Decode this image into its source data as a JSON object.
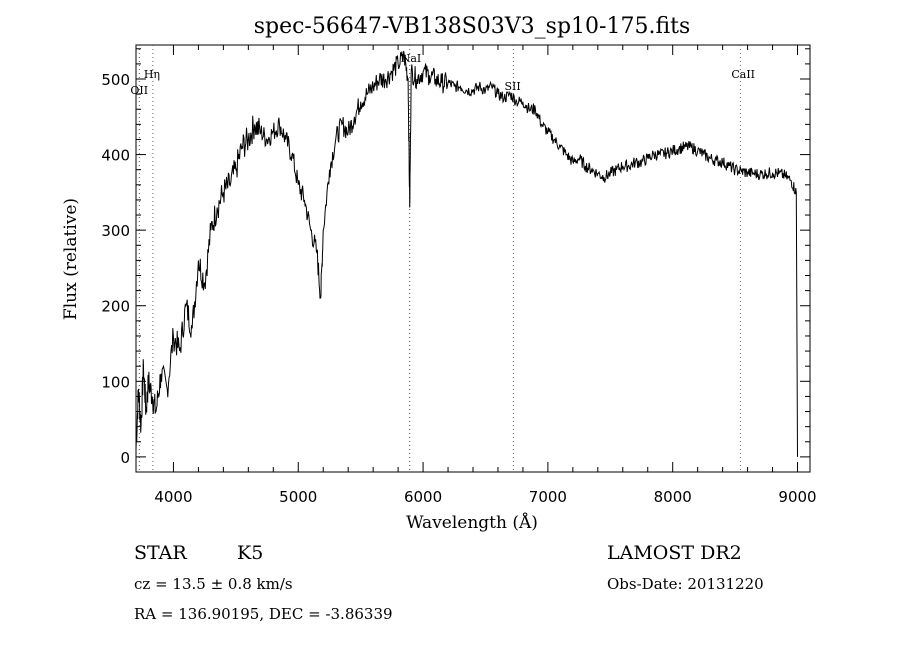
{
  "chart_data": {
    "type": "line",
    "title": "spec-56647-VB138S03V3_sp10-175.fits",
    "xlabel": "Wavelength (Å)",
    "ylabel": "Flux (relative)",
    "xlim": [
      3700,
      9100
    ],
    "ylim": [
      -20,
      545
    ],
    "x_ticks": [
      4000,
      5000,
      6000,
      7000,
      8000,
      9000
    ],
    "y_ticks": [
      0,
      100,
      200,
      300,
      400,
      500
    ],
    "grid": false,
    "series": [
      {
        "x": [
          3700,
          3720,
          3740,
          3760,
          3780,
          3800,
          3830,
          3860,
          3900,
          3950,
          4000,
          4050,
          4100,
          4150,
          4200,
          4250,
          4300,
          4350,
          4400,
          4450,
          4500,
          4550,
          4600,
          4650,
          4700,
          4750,
          4800,
          4850,
          4900,
          4950,
          5000,
          5050,
          5100,
          5150,
          5180,
          5200,
          5250,
          5300,
          5350,
          5400,
          5450,
          5500,
          5550,
          5600,
          5650,
          5700,
          5750,
          5800,
          5850,
          5880,
          5893,
          5905,
          5950,
          6000,
          6050,
          6100,
          6150,
          6200,
          6250,
          6300,
          6350,
          6400,
          6450,
          6500,
          6550,
          6600,
          6650,
          6700,
          6750,
          6800,
          6850,
          6900,
          6950,
          7000,
          7050,
          7100,
          7150,
          7200,
          7250,
          7300,
          7350,
          7400,
          7450,
          7500,
          7550,
          7600,
          7650,
          7700,
          7750,
          7800,
          7850,
          7900,
          7950,
          8000,
          8050,
          8100,
          8150,
          8200,
          8250,
          8300,
          8350,
          8400,
          8450,
          8500,
          8550,
          8600,
          8650,
          8700,
          8750,
          8800,
          8850,
          8900,
          8950,
          8990,
          9000
        ],
        "y": [
          10,
          90,
          40,
          120,
          60,
          100,
          80,
          60,
          110,
          90,
          160,
          140,
          200,
          170,
          260,
          230,
          300,
          330,
          350,
          360,
          380,
          410,
          420,
          440,
          430,
          420,
          430,
          440,
          420,
          400,
          360,
          340,
          300,
          270,
          210,
          300,
          380,
          420,
          440,
          430,
          450,
          470,
          480,
          490,
          500,
          500,
          510,
          520,
          530,
          500,
          330,
          510,
          500,
          510,
          505,
          500,
          495,
          495,
          490,
          490,
          485,
          485,
          490,
          485,
          490,
          480,
          475,
          480,
          470,
          470,
          460,
          460,
          440,
          430,
          420,
          410,
          400,
          390,
          395,
          385,
          380,
          375,
          370,
          375,
          380,
          385,
          385,
          390,
          390,
          395,
          400,
          400,
          402,
          405,
          408,
          410,
          410,
          405,
          400,
          395,
          392,
          390,
          385,
          380,
          378,
          376,
          375,
          374,
          375,
          376,
          375,
          372,
          365,
          350,
          0
        ]
      }
    ],
    "lines": [
      {
        "label": "Hη",
        "x": 3835
      },
      {
        "label": "OII",
        "x": 3727
      },
      {
        "label": "NaI",
        "x": 5893
      },
      {
        "label": "SII",
        "x": 6724
      },
      {
        "label": "CaII",
        "x": 8542
      }
    ],
    "info": {
      "object": "STAR",
      "subclass": "K5",
      "survey": "LAMOST DR2",
      "cz": "cz = 13.5 ± 0.8 km/s",
      "obs_date": "Obs-Date: 20131220",
      "coords": "RA = 136.90195, DEC =  -3.86339"
    }
  }
}
